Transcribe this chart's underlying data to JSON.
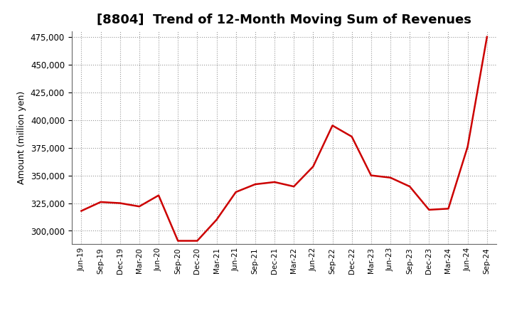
{
  "title": "[8804]  Trend of 12-Month Moving Sum of Revenues",
  "ylabel": "Amount (million yen)",
  "line_color": "#cc0000",
  "line_width": 1.8,
  "background_color": "#ffffff",
  "grid_color": "#999999",
  "grid_style": "dotted",
  "ylim": [
    288000,
    480000
  ],
  "yticks": [
    300000,
    325000,
    350000,
    375000,
    400000,
    425000,
    450000,
    475000
  ],
  "x_labels": [
    "Jun-19",
    "Sep-19",
    "Dec-19",
    "Mar-20",
    "Jun-20",
    "Sep-20",
    "Dec-20",
    "Mar-21",
    "Jun-21",
    "Sep-21",
    "Dec-21",
    "Mar-22",
    "Jun-22",
    "Sep-22",
    "Dec-22",
    "Mar-23",
    "Jun-23",
    "Sep-23",
    "Dec-23",
    "Mar-24",
    "Jun-24",
    "Sep-24"
  ],
  "values": [
    318000,
    326000,
    325000,
    322000,
    332000,
    291000,
    291000,
    310000,
    335000,
    342000,
    344000,
    340000,
    358000,
    395000,
    385000,
    350000,
    348000,
    340000,
    319000,
    320000,
    376000,
    475000
  ],
  "title_fontsize": 13,
  "ylabel_fontsize": 9,
  "tick_fontsize": 8.5,
  "xtick_fontsize": 7.5
}
